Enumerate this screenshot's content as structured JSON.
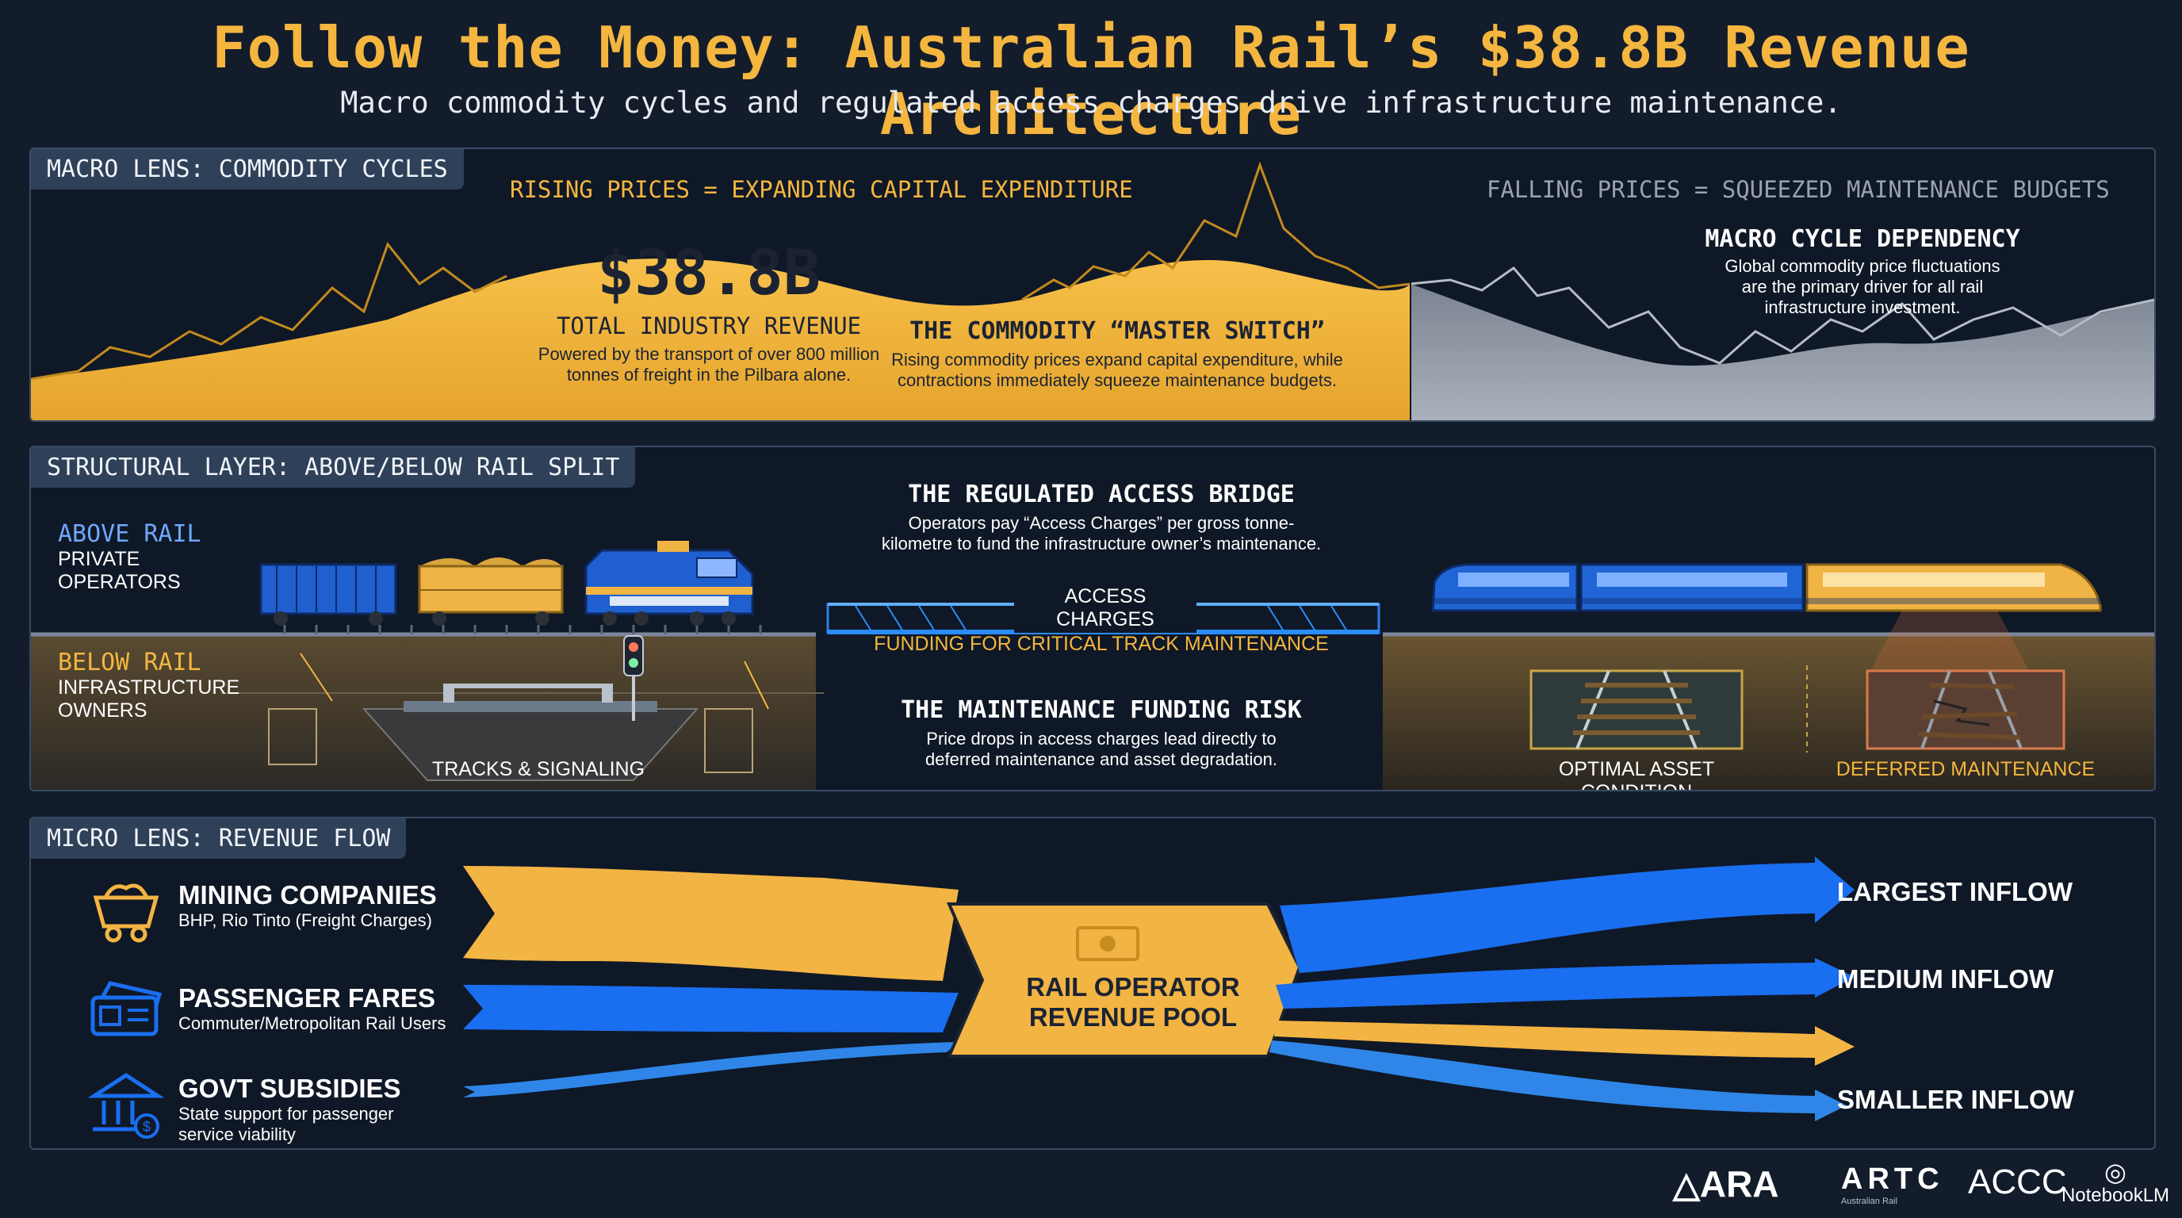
{
  "title": "Follow the Money: Australian Rail’s $38.8B Revenue Architecture",
  "subtitle": "Macro commodity cycles and regulated access charges drive infrastructure maintenance.",
  "macro": {
    "tag": "MACRO LENS: COMMODITY CYCLES",
    "rising": "RISING PRICES = EXPANDING CAPITAL EXPENDITURE",
    "falling": "FALLING PRICES = SQUEEZED MAINTENANCE BUDGETS",
    "revenue_value": "$38.8B",
    "revenue_label": "TOTAL INDUSTRY REVENUE",
    "revenue_desc_1": "Powered by the transport of over 800 million",
    "revenue_desc_2": "tonnes of freight in the Pilbara alone.",
    "switch_title": "THE COMMODITY “MASTER SWITCH”",
    "switch_desc_1": "Rising commodity prices expand capital expenditure, while",
    "switch_desc_2": "contractions immediately squeeze maintenance budgets.",
    "dependency_title": "MACRO CYCLE DEPENDENCY",
    "dependency_desc_1": "Global commodity price fluctuations",
    "dependency_desc_2": "are the primary driver for all rail",
    "dependency_desc_3": "infrastructure investment."
  },
  "structural": {
    "tag": "STRUCTURAL LAYER: ABOVE/BELOW RAIL SPLIT",
    "above_title": "ABOVE RAIL",
    "above_sub_1": "PRIVATE",
    "above_sub_2": "OPERATORS",
    "below_title": "BELOW RAIL",
    "below_sub_1": "INFRASTRUCTURE",
    "below_sub_2": "OWNERS",
    "bridge_title": "THE REGULATED ACCESS BRIDGE",
    "bridge_desc_1": "Operators pay “Access Charges” per gross tonne-",
    "bridge_desc_2": "kilometre to fund the infrastructure owner’s maintenance.",
    "access_charges": "ACCESS CHARGES",
    "funding": "FUNDING FOR CRITICAL TRACK MAINTENANCE",
    "risk_title": "THE MAINTENANCE FUNDING RISK",
    "risk_desc_1": "Price drops in access charges lead directly to",
    "risk_desc_2": "deferred maintenance and asset degradation.",
    "tracks_label": "TRACKS & SIGNALING",
    "optimal_label": "OPTIMAL ASSET CONDITION",
    "deferred_label": "DEFERRED MAINTENANCE"
  },
  "micro": {
    "tag": "MICRO LENS: REVENUE FLOW",
    "sources": [
      {
        "title": "MINING COMPANIES",
        "desc_1": "BHP, Rio Tinto (Freight Charges)",
        "desc_2": "",
        "icon": "mine-cart-icon"
      },
      {
        "title": "PASSENGER FARES",
        "desc_1": "Commuter/Metropolitan Rail Users",
        "desc_2": "",
        "icon": "ticket-icon"
      },
      {
        "title": "GOVT SUBSIDIES",
        "desc_1": "State support for passenger",
        "desc_2": "service viability",
        "icon": "government-icon"
      }
    ],
    "pool_line_1": "RAIL OPERATOR",
    "pool_line_2": "REVENUE POOL",
    "outflows": [
      "LARGEST INFLOW",
      "MEDIUM INFLOW",
      "SMALLER INFLOW"
    ]
  },
  "logos": {
    "ara": "ARA",
    "artc": "ARTC",
    "artc_sub": "Australian Rail",
    "accc": "ACCC",
    "notebook": "NotebookLM"
  },
  "colors": {
    "accent_yellow": "#f4b63f",
    "accent_blue": "#1a6ef0",
    "background": "#131c2b",
    "grey": "#8e96a3"
  }
}
